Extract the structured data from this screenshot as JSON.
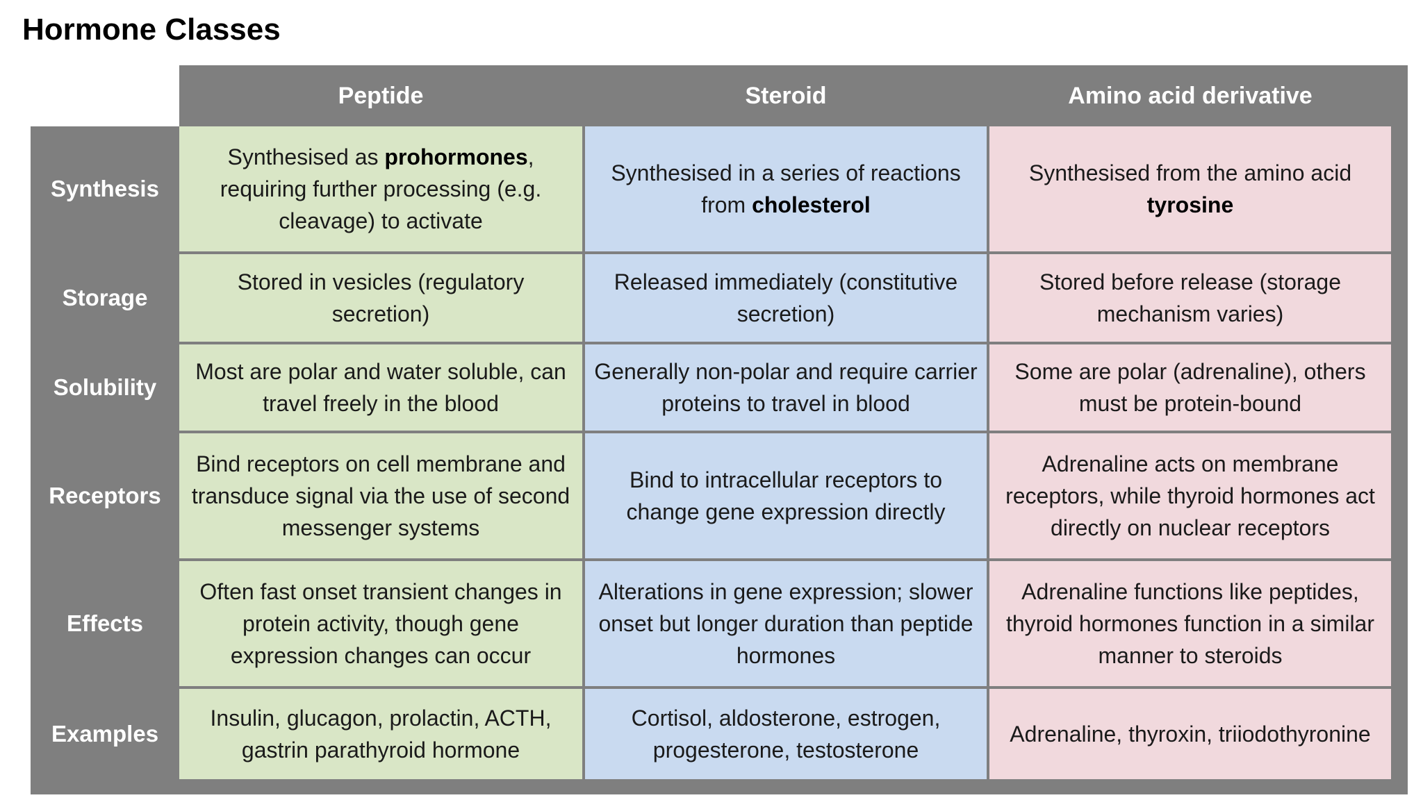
{
  "title": "Hormone Classes",
  "columns": [
    "Peptide",
    "Steroid",
    "Amino acid derivative"
  ],
  "colors": {
    "header_bg": "#7f7f7f",
    "peptide_cell": "#d9e6c6",
    "steroid_cell": "#c9daf0",
    "amino_cell": "#f1d9dd"
  },
  "rows": [
    {
      "label": "Synthesis",
      "cells": [
        {
          "before": "Synthesised as ",
          "bold": "prohormones",
          "after": ", requiring further processing (e.g. cleavage) to activate"
        },
        {
          "before": "Synthesised in a series of reactions from ",
          "bold": "cholesterol",
          "after": ""
        },
        {
          "before": "Synthesised from the amino acid ",
          "bold": "tyrosine",
          "after": ""
        }
      ]
    },
    {
      "label": "Storage",
      "cells": [
        {
          "before": "Stored in vesicles (regulatory secretion)",
          "bold": "",
          "after": ""
        },
        {
          "before": "Released immediately (constitutive secretion)",
          "bold": "",
          "after": ""
        },
        {
          "before": "Stored before release (storage mechanism varies)",
          "bold": "",
          "after": ""
        }
      ]
    },
    {
      "label": "Solubility",
      "cells": [
        {
          "before": "Most are polar and water soluble, can travel freely in the blood",
          "bold": "",
          "after": ""
        },
        {
          "before": "Generally non-polar and require carrier proteins to travel in blood",
          "bold": "",
          "after": ""
        },
        {
          "before": "Some are polar (adrenaline), others must be protein-bound",
          "bold": "",
          "after": ""
        }
      ]
    },
    {
      "label": "Receptors",
      "cells": [
        {
          "before": "Bind receptors on cell membrane and transduce signal via the use of second messenger systems",
          "bold": "",
          "after": ""
        },
        {
          "before": "Bind to intracellular receptors to change gene expression directly",
          "bold": "",
          "after": ""
        },
        {
          "before": "Adrenaline acts on membrane receptors, while thyroid hormones act directly on nuclear receptors",
          "bold": "",
          "after": ""
        }
      ]
    },
    {
      "label": "Effects",
      "cells": [
        {
          "before": "Often fast onset transient changes in protein activity, though gene expression changes can occur",
          "bold": "",
          "after": ""
        },
        {
          "before": "Alterations in gene expression; slower onset but longer duration than peptide hormones",
          "bold": "",
          "after": ""
        },
        {
          "before": "Adrenaline functions like peptides, thyroid hormones function in a similar manner to steroids",
          "bold": "",
          "after": ""
        }
      ]
    },
    {
      "label": "Examples",
      "cells": [
        {
          "before": "Insulin, glucagon, prolactin, ACTH, gastrin parathyroid hormone",
          "bold": "",
          "after": ""
        },
        {
          "before": "Cortisol, aldosterone, estrogen, progesterone, testosterone",
          "bold": "",
          "after": ""
        },
        {
          "before": "Adrenaline, thyroxin, triiodothyronine",
          "bold": "",
          "after": ""
        }
      ]
    }
  ]
}
